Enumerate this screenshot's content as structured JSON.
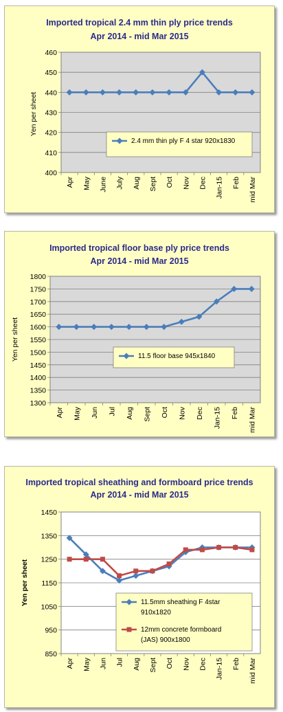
{
  "chart_data": [
    {
      "type": "line",
      "title": "Imported tropical 2.4 mm thin ply price trends",
      "subtitle": "Apr 2014 - mid Mar 2015",
      "xlabel": "",
      "ylabel": "Yen per sheet",
      "categories": [
        "Apr",
        "May",
        "June",
        "July",
        "Aug",
        "Sept",
        "Oct",
        "Nov",
        "Dec",
        "Jan-15",
        "Feb",
        "mid Mar"
      ],
      "ylim": [
        400,
        460
      ],
      "yticks": [
        400,
        410,
        420,
        430,
        440,
        450,
        460
      ],
      "grid": true,
      "legend": "center-right",
      "series": [
        {
          "name": "2.4 mm thin ply F 4 star 920x1830",
          "color": "#4a7ebb",
          "marker": "diamond",
          "values": [
            440,
            440,
            440,
            440,
            440,
            440,
            440,
            440,
            450,
            440,
            440,
            440
          ]
        }
      ]
    },
    {
      "type": "line",
      "title": "Imported tropical floor base ply price trends",
      "subtitle": "Apr 2014 - mid Mar 2015",
      "xlabel": "",
      "ylabel": "Yen per sheet",
      "categories": [
        "Apr",
        "May",
        "Jun",
        "Jul",
        "Aug",
        "Sept",
        "Oct",
        "Nov",
        "Dec",
        "Jan-15",
        "Feb",
        "mid Mar"
      ],
      "ylim": [
        1300,
        1800
      ],
      "yticks": [
        1300,
        1350,
        1400,
        1450,
        1500,
        1550,
        1600,
        1650,
        1700,
        1750,
        1800
      ],
      "grid": true,
      "legend": "center-right",
      "series": [
        {
          "name": "11.5 floor base 945x1840",
          "color": "#4a7ebb",
          "marker": "diamond",
          "values": [
            1600,
            1600,
            1600,
            1600,
            1600,
            1600,
            1600,
            1620,
            1640,
            1700,
            1750,
            1750
          ]
        }
      ]
    },
    {
      "type": "line",
      "title": "Imported tropical sheathing and formboard price trends",
      "subtitle": "Apr 2014 - mid Mar 2015",
      "xlabel": "",
      "ylabel": "Yen per sheet",
      "categories": [
        "Apr",
        "May",
        "Jun",
        "Jul",
        "Aug",
        "Sept",
        "Oct",
        "Nov",
        "Dec",
        "Jan-15",
        "Feb",
        "mid Mar"
      ],
      "ylim": [
        850,
        1450
      ],
      "yticks": [
        850,
        950,
        1050,
        1150,
        1250,
        1350,
        1450
      ],
      "grid": true,
      "legend": "bottom-right",
      "series": [
        {
          "name": "11.5mm sheathing F 4star 910x1820",
          "color": "#4a7ebb",
          "marker": "diamond",
          "values": [
            1340,
            1270,
            1200,
            1160,
            1180,
            1200,
            1220,
            1280,
            1300,
            1300,
            1300,
            1300
          ]
        },
        {
          "name": "12mm concrete formboard (JAS) 900x1800",
          "color": "#be4b48",
          "marker": "square",
          "values": [
            1250,
            1250,
            1250,
            1180,
            1200,
            1200,
            1230,
            1290,
            1290,
            1300,
            1300,
            1290
          ]
        }
      ]
    }
  ]
}
